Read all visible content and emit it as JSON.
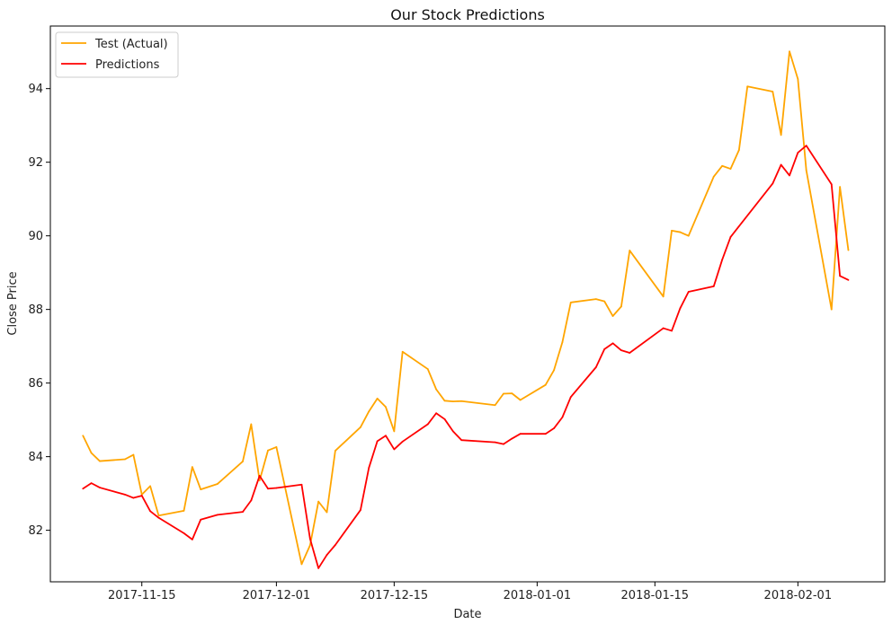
{
  "chart_data": {
    "type": "line",
    "title": "Our Stock Predictions",
    "xlabel": "Date",
    "ylabel": "Close Price",
    "x_ticks": [
      "2017-11-15",
      "2017-12-01",
      "2017-12-15",
      "2018-01-01",
      "2018-01-15",
      "2018-02-01"
    ],
    "y_ticks": [
      82,
      84,
      86,
      88,
      90,
      92,
      94
    ],
    "xlim": [
      "2017-11-04T03:00",
      "2018-02-11T08:00"
    ],
    "ylim": [
      80.6,
      95.7
    ],
    "grid": false,
    "legend_position": "top-left",
    "series": [
      {
        "name": "Test (Actual)",
        "color": "#ffa500",
        "points": [
          [
            "2017-11-08",
            84.57
          ],
          [
            "2017-11-09",
            84.1
          ],
          [
            "2017-11-10",
            83.88
          ],
          [
            "2017-11-13",
            83.93
          ],
          [
            "2017-11-14",
            84.05
          ],
          [
            "2017-11-15",
            82.97
          ],
          [
            "2017-11-16",
            83.2
          ],
          [
            "2017-11-17",
            82.4
          ],
          [
            "2017-11-20",
            82.53
          ],
          [
            "2017-11-21",
            83.72
          ],
          [
            "2017-11-22",
            83.11
          ],
          [
            "2017-11-24",
            83.26
          ],
          [
            "2017-11-27",
            83.87
          ],
          [
            "2017-11-28",
            84.88
          ],
          [
            "2017-11-29",
            83.35
          ],
          [
            "2017-11-30",
            84.17
          ],
          [
            "2017-12-01",
            84.26
          ],
          [
            "2017-12-04",
            81.08
          ],
          [
            "2017-12-05",
            81.59
          ],
          [
            "2017-12-06",
            82.78
          ],
          [
            "2017-12-07",
            82.49
          ],
          [
            "2017-12-08",
            84.16
          ],
          [
            "2017-12-11",
            84.8
          ],
          [
            "2017-12-12",
            85.23
          ],
          [
            "2017-12-13",
            85.58
          ],
          [
            "2017-12-14",
            85.35
          ],
          [
            "2017-12-15",
            84.69
          ],
          [
            "2017-12-16",
            86.85
          ],
          [
            "2017-12-19",
            86.38
          ],
          [
            "2017-12-20",
            85.83
          ],
          [
            "2017-12-21",
            85.52
          ],
          [
            "2017-12-22",
            85.5
          ],
          [
            "2017-12-23",
            85.51
          ],
          [
            "2017-12-27",
            85.4
          ],
          [
            "2017-12-28",
            85.71
          ],
          [
            "2017-12-29",
            85.72
          ],
          [
            "2017-12-30",
            85.54
          ],
          [
            "2018-01-02",
            85.95
          ],
          [
            "2018-01-03",
            86.35
          ],
          [
            "2018-01-04",
            87.11
          ],
          [
            "2018-01-05",
            88.19
          ],
          [
            "2018-01-08",
            88.28
          ],
          [
            "2018-01-09",
            88.22
          ],
          [
            "2018-01-10",
            87.82
          ],
          [
            "2018-01-11",
            88.08
          ],
          [
            "2018-01-12",
            89.6
          ],
          [
            "2018-01-16",
            88.35
          ],
          [
            "2018-01-17",
            90.14
          ],
          [
            "2018-01-18",
            90.1
          ],
          [
            "2018-01-19",
            90.0
          ],
          [
            "2018-01-22",
            91.61
          ],
          [
            "2018-01-23",
            91.9
          ],
          [
            "2018-01-24",
            91.82
          ],
          [
            "2018-01-25",
            92.33
          ],
          [
            "2018-01-26",
            94.06
          ],
          [
            "2018-01-29",
            93.92
          ],
          [
            "2018-01-30",
            92.74
          ],
          [
            "2018-01-31",
            95.01
          ],
          [
            "2018-02-01",
            94.26
          ],
          [
            "2018-02-02",
            91.78
          ],
          [
            "2018-02-05",
            88.0
          ],
          [
            "2018-02-06",
            91.33
          ],
          [
            "2018-02-07",
            89.61
          ]
        ]
      },
      {
        "name": "Predictions",
        "color": "#ff0000",
        "points": [
          [
            "2017-11-08",
            83.13
          ],
          [
            "2017-11-09",
            83.28
          ],
          [
            "2017-11-10",
            83.16
          ],
          [
            "2017-11-13",
            82.97
          ],
          [
            "2017-11-14",
            82.88
          ],
          [
            "2017-11-15",
            82.94
          ],
          [
            "2017-11-16",
            82.52
          ],
          [
            "2017-11-17",
            82.34
          ],
          [
            "2017-11-20",
            81.92
          ],
          [
            "2017-11-21",
            81.75
          ],
          [
            "2017-11-22",
            82.29
          ],
          [
            "2017-11-24",
            82.42
          ],
          [
            "2017-11-27",
            82.5
          ],
          [
            "2017-11-28",
            82.81
          ],
          [
            "2017-11-29",
            83.48
          ],
          [
            "2017-11-30",
            83.13
          ],
          [
            "2017-12-01",
            83.15
          ],
          [
            "2017-12-04",
            83.24
          ],
          [
            "2017-12-05",
            81.77
          ],
          [
            "2017-12-06",
            80.97
          ],
          [
            "2017-12-07",
            81.33
          ],
          [
            "2017-12-08",
            81.6
          ],
          [
            "2017-12-11",
            82.55
          ],
          [
            "2017-12-12",
            83.7
          ],
          [
            "2017-12-13",
            84.42
          ],
          [
            "2017-12-14",
            84.57
          ],
          [
            "2017-12-15",
            84.2
          ],
          [
            "2017-12-16",
            84.41
          ],
          [
            "2017-12-19",
            84.88
          ],
          [
            "2017-12-20",
            85.18
          ],
          [
            "2017-12-21",
            85.02
          ],
          [
            "2017-12-22",
            84.69
          ],
          [
            "2017-12-23",
            84.45
          ],
          [
            "2017-12-27",
            84.39
          ],
          [
            "2017-12-28",
            84.34
          ],
          [
            "2017-12-29",
            84.49
          ],
          [
            "2017-12-30",
            84.62
          ],
          [
            "2018-01-02",
            84.62
          ],
          [
            "2018-01-03",
            84.77
          ],
          [
            "2018-01-04",
            85.07
          ],
          [
            "2018-01-05",
            85.62
          ],
          [
            "2018-01-08",
            86.43
          ],
          [
            "2018-01-09",
            86.92
          ],
          [
            "2018-01-10",
            87.08
          ],
          [
            "2018-01-11",
            86.89
          ],
          [
            "2018-01-12",
            86.82
          ],
          [
            "2018-01-16",
            87.49
          ],
          [
            "2018-01-17",
            87.42
          ],
          [
            "2018-01-18",
            88.03
          ],
          [
            "2018-01-19",
            88.48
          ],
          [
            "2018-01-22",
            88.63
          ],
          [
            "2018-01-23",
            89.35
          ],
          [
            "2018-01-24",
            89.97
          ],
          [
            "2018-01-29",
            91.42
          ],
          [
            "2018-01-30",
            91.93
          ],
          [
            "2018-01-31",
            91.64
          ],
          [
            "2018-02-01",
            92.26
          ],
          [
            "2018-02-02",
            92.45
          ],
          [
            "2018-02-05",
            91.4
          ],
          [
            "2018-02-06",
            88.91
          ],
          [
            "2018-02-07",
            88.8
          ]
        ]
      }
    ]
  }
}
